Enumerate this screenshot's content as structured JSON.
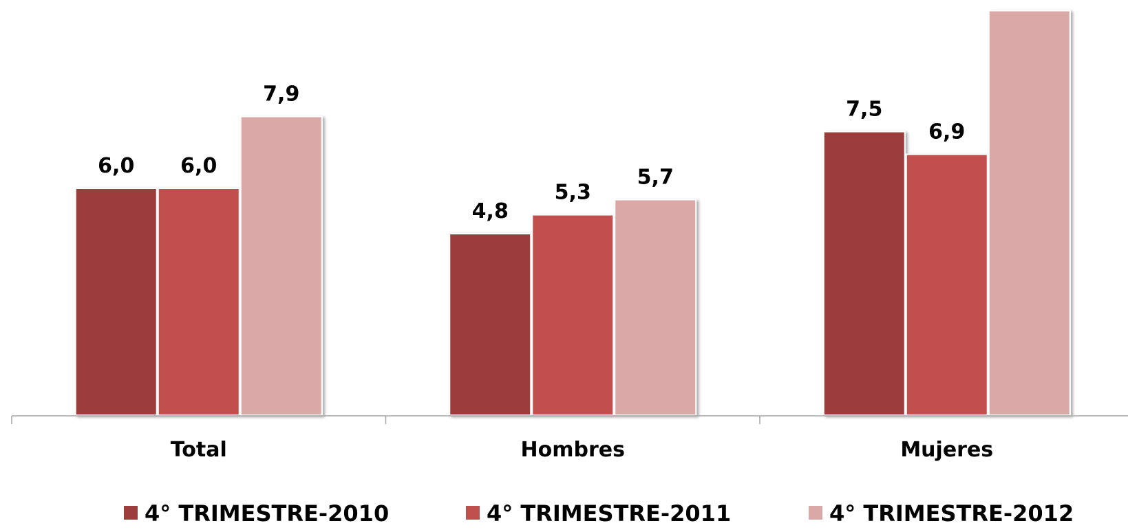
{
  "chart_data": {
    "type": "bar",
    "categories": [
      "Total",
      "Hombres",
      "Mujeres"
    ],
    "series": [
      {
        "name": "4° TRIMESTRE-2010",
        "values": [
          "6,0",
          "4,8",
          "7,5"
        ],
        "color": "#9b3e3c"
      },
      {
        "name": "4° TRIMESTRE-2011",
        "values": [
          "6,0",
          "5,3",
          "6,9"
        ],
        "color": "#c0504d"
      },
      {
        "name": "4° TRIMESTRE-2012",
        "values": [
          "7,9",
          "5,7",
          "10,7"
        ],
        "color": "#d9a8a7"
      }
    ],
    "ylim": [
      0,
      11.5
    ],
    "grid": false,
    "legend_position": "bottom",
    "title": "",
    "xlabel": "",
    "ylabel": ""
  }
}
